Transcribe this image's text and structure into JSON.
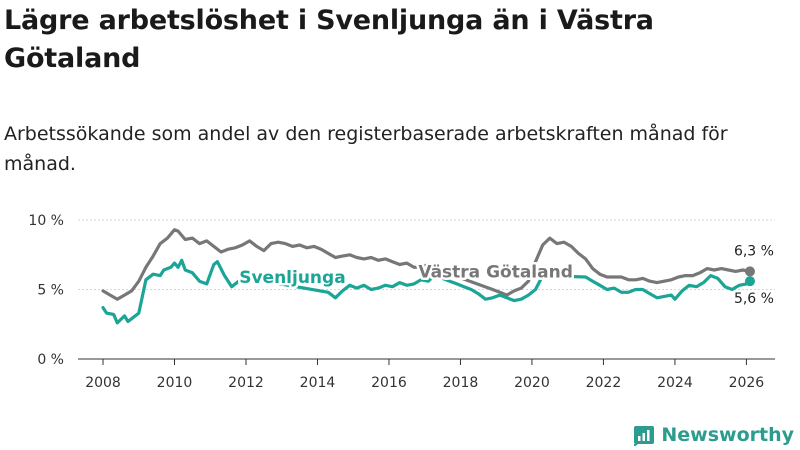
{
  "title": "Lägre arbetslöshet i Svenljunga än i Västra Götaland",
  "subtitle": "Arbetssökande som andel av den registerbaserade arbetskraften månad för månad.",
  "brand": "Newsworthy",
  "colors": {
    "region": "#777777",
    "local": "#1ba597",
    "grid": "#d6d6d6",
    "brand": "#2b9c8e"
  },
  "chart_data": {
    "type": "line",
    "xlim": [
      2007.3,
      2026.8
    ],
    "ylim": [
      0,
      10
    ],
    "yticks": [
      0,
      5,
      10
    ],
    "ytick_labels": [
      "0 %",
      "5 %",
      "10 %"
    ],
    "xticks": [
      2008,
      2010,
      2012,
      2014,
      2016,
      2018,
      2020,
      2022,
      2024,
      2026
    ],
    "xtick_labels": [
      "2008",
      "2010",
      "2012",
      "2014",
      "2016",
      "2018",
      "2020",
      "2022",
      "2024",
      "2026"
    ],
    "series": [
      {
        "name": "Västra Götaland",
        "color": "#777777",
        "label": "Västra Götaland",
        "end_label": "6,3 %",
        "points": [
          [
            2008.0,
            4.9
          ],
          [
            2008.2,
            4.6
          ],
          [
            2008.4,
            4.3
          ],
          [
            2008.6,
            4.6
          ],
          [
            2008.8,
            4.9
          ],
          [
            2009.0,
            5.6
          ],
          [
            2009.2,
            6.6
          ],
          [
            2009.4,
            7.4
          ],
          [
            2009.6,
            8.3
          ],
          [
            2009.8,
            8.7
          ],
          [
            2010.0,
            9.3
          ],
          [
            2010.1,
            9.2
          ],
          [
            2010.3,
            8.6
          ],
          [
            2010.5,
            8.7
          ],
          [
            2010.7,
            8.3
          ],
          [
            2010.9,
            8.5
          ],
          [
            2011.1,
            8.1
          ],
          [
            2011.3,
            7.7
          ],
          [
            2011.5,
            7.9
          ],
          [
            2011.7,
            8.0
          ],
          [
            2011.9,
            8.2
          ],
          [
            2012.1,
            8.5
          ],
          [
            2012.3,
            8.1
          ],
          [
            2012.5,
            7.8
          ],
          [
            2012.7,
            8.3
          ],
          [
            2012.9,
            8.4
          ],
          [
            2013.1,
            8.3
          ],
          [
            2013.3,
            8.1
          ],
          [
            2013.5,
            8.2
          ],
          [
            2013.7,
            8.0
          ],
          [
            2013.9,
            8.1
          ],
          [
            2014.1,
            7.9
          ],
          [
            2014.3,
            7.6
          ],
          [
            2014.5,
            7.3
          ],
          [
            2014.7,
            7.4
          ],
          [
            2014.9,
            7.5
          ],
          [
            2015.1,
            7.3
          ],
          [
            2015.3,
            7.2
          ],
          [
            2015.5,
            7.3
          ],
          [
            2015.7,
            7.1
          ],
          [
            2015.9,
            7.2
          ],
          [
            2016.1,
            7.0
          ],
          [
            2016.3,
            6.8
          ],
          [
            2016.5,
            6.9
          ],
          [
            2016.7,
            6.6
          ],
          [
            2016.9,
            6.6
          ],
          [
            2017.1,
            6.8
          ],
          [
            2017.3,
            6.7
          ],
          [
            2017.5,
            6.3
          ],
          [
            2018.9,
            5.0
          ],
          [
            2019.1,
            4.8
          ],
          [
            2019.3,
            4.6
          ],
          [
            2019.5,
            4.9
          ],
          [
            2019.7,
            5.1
          ],
          [
            2019.9,
            5.6
          ],
          [
            2020.1,
            7.0
          ],
          [
            2020.3,
            8.2
          ],
          [
            2020.5,
            8.7
          ],
          [
            2020.7,
            8.3
          ],
          [
            2020.9,
            8.4
          ],
          [
            2021.1,
            8.1
          ],
          [
            2021.3,
            7.6
          ],
          [
            2021.5,
            7.2
          ],
          [
            2021.7,
            6.5
          ],
          [
            2021.9,
            6.1
          ],
          [
            2022.1,
            5.9
          ],
          [
            2022.3,
            5.9
          ],
          [
            2022.5,
            5.9
          ],
          [
            2022.7,
            5.7
          ],
          [
            2022.9,
            5.7
          ],
          [
            2023.1,
            5.8
          ],
          [
            2023.3,
            5.6
          ],
          [
            2023.5,
            5.5
          ],
          [
            2023.7,
            5.6
          ],
          [
            2023.9,
            5.7
          ],
          [
            2024.1,
            5.9
          ],
          [
            2024.3,
            6.0
          ],
          [
            2024.5,
            6.0
          ],
          [
            2024.7,
            6.2
          ],
          [
            2024.9,
            6.5
          ],
          [
            2025.1,
            6.4
          ],
          [
            2025.3,
            6.5
          ],
          [
            2025.5,
            6.4
          ],
          [
            2025.7,
            6.3
          ],
          [
            2025.9,
            6.4
          ],
          [
            2026.1,
            6.3
          ]
        ]
      },
      {
        "name": "Svenljunga",
        "color": "#1ba597",
        "label": "Svenljunga",
        "end_label": "5,6 %",
        "points": [
          [
            2008.0,
            3.7
          ],
          [
            2008.1,
            3.3
          ],
          [
            2008.3,
            3.2
          ],
          [
            2008.4,
            2.6
          ],
          [
            2008.6,
            3.1
          ],
          [
            2008.7,
            2.7
          ],
          [
            2008.8,
            2.9
          ],
          [
            2009.0,
            3.3
          ],
          [
            2009.2,
            5.7
          ],
          [
            2009.4,
            6.1
          ],
          [
            2009.6,
            6.0
          ],
          [
            2009.7,
            6.4
          ],
          [
            2009.9,
            6.6
          ],
          [
            2010.0,
            6.9
          ],
          [
            2010.1,
            6.6
          ],
          [
            2010.2,
            7.1
          ],
          [
            2010.3,
            6.4
          ],
          [
            2010.5,
            6.2
          ],
          [
            2010.7,
            5.6
          ],
          [
            2010.9,
            5.4
          ],
          [
            2011.1,
            6.8
          ],
          [
            2011.2,
            7.0
          ],
          [
            2011.4,
            6.0
          ],
          [
            2011.6,
            5.2
          ],
          [
            2011.8,
            5.6
          ],
          [
            2012.0,
            5.8
          ],
          [
            2012.1,
            6.0
          ],
          [
            2012.3,
            5.7
          ],
          [
            2014.3,
            4.8
          ],
          [
            2014.5,
            4.4
          ],
          [
            2014.7,
            4.9
          ],
          [
            2014.9,
            5.3
          ],
          [
            2015.1,
            5.1
          ],
          [
            2015.3,
            5.3
          ],
          [
            2015.5,
            5.0
          ],
          [
            2015.7,
            5.1
          ],
          [
            2015.9,
            5.3
          ],
          [
            2016.1,
            5.2
          ],
          [
            2016.3,
            5.5
          ],
          [
            2016.5,
            5.3
          ],
          [
            2016.7,
            5.4
          ],
          [
            2016.9,
            5.7
          ],
          [
            2017.1,
            5.6
          ],
          [
            2017.3,
            6.1
          ],
          [
            2017.5,
            5.8
          ],
          [
            2017.7,
            5.6
          ],
          [
            2017.9,
            5.4
          ],
          [
            2018.1,
            5.2
          ],
          [
            2018.3,
            5.0
          ],
          [
            2018.5,
            4.7
          ],
          [
            2018.7,
            4.3
          ],
          [
            2018.9,
            4.4
          ],
          [
            2019.1,
            4.6
          ],
          [
            2019.3,
            4.4
          ],
          [
            2019.5,
            4.2
          ],
          [
            2019.7,
            4.3
          ],
          [
            2019.9,
            4.6
          ],
          [
            2020.1,
            5.0
          ],
          [
            2020.3,
            6.0
          ],
          [
            2021.5,
            5.9
          ],
          [
            2021.7,
            5.6
          ],
          [
            2021.9,
            5.3
          ],
          [
            2022.1,
            5.0
          ],
          [
            2022.3,
            5.1
          ],
          [
            2022.5,
            4.8
          ],
          [
            2022.7,
            4.8
          ],
          [
            2022.9,
            5.0
          ],
          [
            2023.1,
            5.0
          ],
          [
            2023.3,
            4.7
          ],
          [
            2023.5,
            4.4
          ],
          [
            2023.7,
            4.5
          ],
          [
            2023.9,
            4.6
          ],
          [
            2024.0,
            4.3
          ],
          [
            2024.2,
            4.9
          ],
          [
            2024.4,
            5.3
          ],
          [
            2024.6,
            5.2
          ],
          [
            2024.8,
            5.5
          ],
          [
            2025.0,
            6.0
          ],
          [
            2025.2,
            5.8
          ],
          [
            2025.4,
            5.2
          ],
          [
            2025.6,
            5.0
          ],
          [
            2025.8,
            5.3
          ],
          [
            2026.0,
            5.4
          ],
          [
            2026.1,
            5.6
          ]
        ]
      }
    ]
  }
}
